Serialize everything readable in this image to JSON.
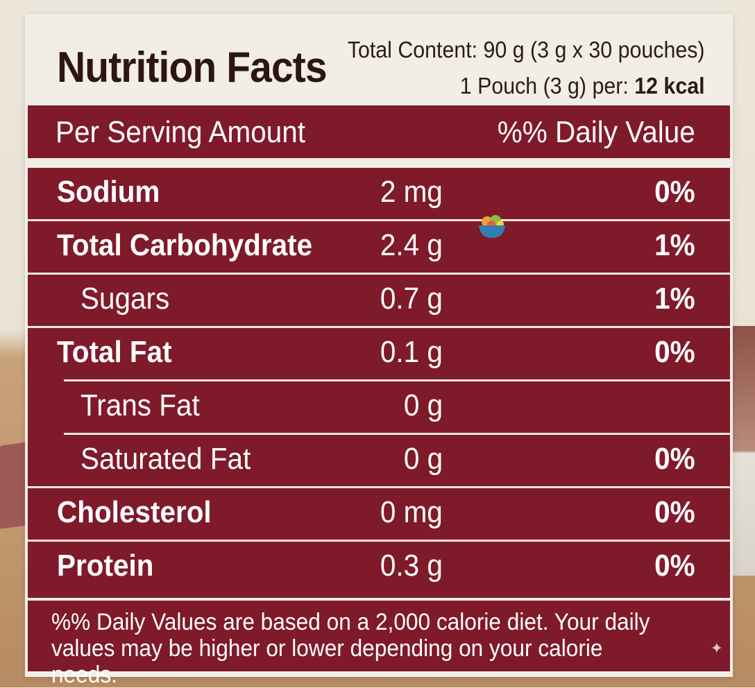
{
  "label": {
    "title": "Nutrition Facts",
    "total_content": "Total Content: 90 g (3 g x 30 pouches)",
    "per_pouch_prefix": "1 Pouch (3 g) per: ",
    "per_pouch_kcal": "12 kcal"
  },
  "header": {
    "amount": "Per Serving Amount",
    "daily_value": "%% Daily Value"
  },
  "rows": [
    {
      "name": "Sodium",
      "amount": "2 mg",
      "dv": "0%"
    },
    {
      "name": "Total Carbohydrate",
      "amount": "2.4 g",
      "dv": "1%"
    },
    {
      "name": "Sugars",
      "amount": "0.7 g",
      "dv": "1%"
    },
    {
      "name": "Total Fat",
      "amount": "0.1 g",
      "dv": "0%"
    },
    {
      "name": "Trans Fat",
      "amount": "0 g",
      "dv": ""
    },
    {
      "name": "Saturated Fat",
      "amount": "0 g",
      "dv": "0%"
    },
    {
      "name": "Cholesterol",
      "amount": "0 mg",
      "dv": "0%"
    },
    {
      "name": "Protein",
      "amount": "0.3 g",
      "dv": "0%"
    }
  ],
  "footnote": "%% Daily Values are based on a 2,000 calorie diet. Your daily values may be higher or lower depending on your calorie needs.",
  "icons": {
    "bowl": "food-bowl-icon",
    "sparkle": "sparkle-icon"
  },
  "colors": {
    "band": "#7f1a2a",
    "card": "#f2eee7",
    "title": "#2e1512"
  }
}
